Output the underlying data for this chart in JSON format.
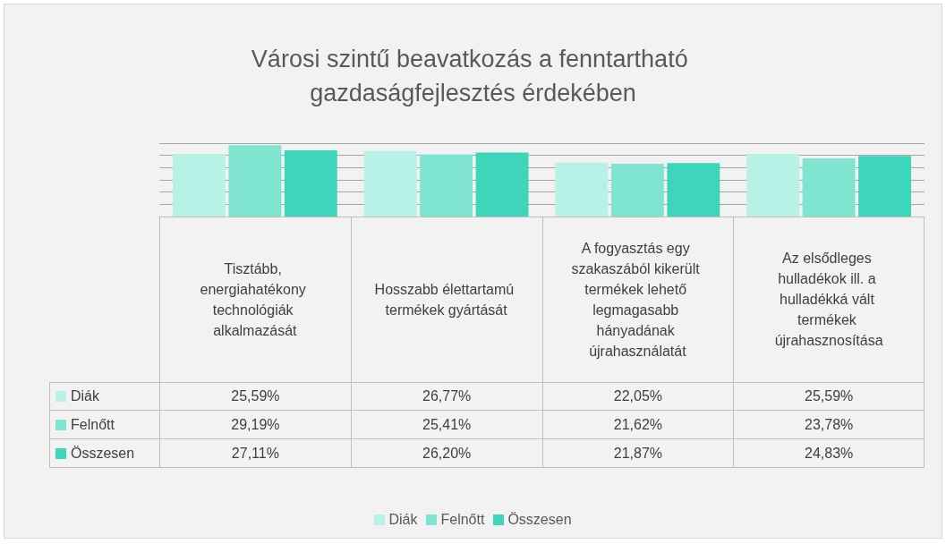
{
  "chart_data": {
    "type": "bar",
    "title": "Városi szintű beavatkozás a fenntartható gazdaságfejlesztés érdekében",
    "categories": [
      "Tisztább, energiahatékony technológiák alkalmazását",
      "Hosszabb élettartamú termékek gyártását",
      "A fogyasztás egy szakaszából kikerült termékek lehető legmagasabb hányadának újrahasználatát",
      "Az elsődleges hulladékok ill. a hulladékká vált termékek újrahasznosítása"
    ],
    "series": [
      {
        "name": "Diák",
        "color": "#b8f1e5",
        "values": [
          25.59,
          26.77,
          22.05,
          25.59
        ],
        "value_labels": [
          "25,59%",
          "26,77%",
          "22,05%",
          "25,59%"
        ]
      },
      {
        "name": "Felnőtt",
        "color": "#7fe4d0",
        "values": [
          29.19,
          25.41,
          21.62,
          23.78
        ],
        "value_labels": [
          "29,19%",
          "25,41%",
          "21,62%",
          "23,78%"
        ]
      },
      {
        "name": "Összesen",
        "color": "#3ed6ba",
        "values": [
          27.11,
          26.2,
          21.87,
          24.83
        ],
        "value_labels": [
          "27,11%",
          "26,20%",
          "21,87%",
          "24,83%"
        ]
      }
    ],
    "ylim": [
      0,
      30
    ],
    "yticks": [
      {
        "value": 0,
        "label": null
      },
      {
        "value": 5,
        "label": null
      },
      {
        "value": 10,
        "label": null
      },
      {
        "value": 15,
        "label": null
      },
      {
        "value": 20,
        "label": null
      },
      {
        "value": 25,
        "label": null
      },
      {
        "value": 30,
        "label": null
      }
    ],
    "tick_labels": "x",
    "grid": "y",
    "legend": "bottom"
  }
}
